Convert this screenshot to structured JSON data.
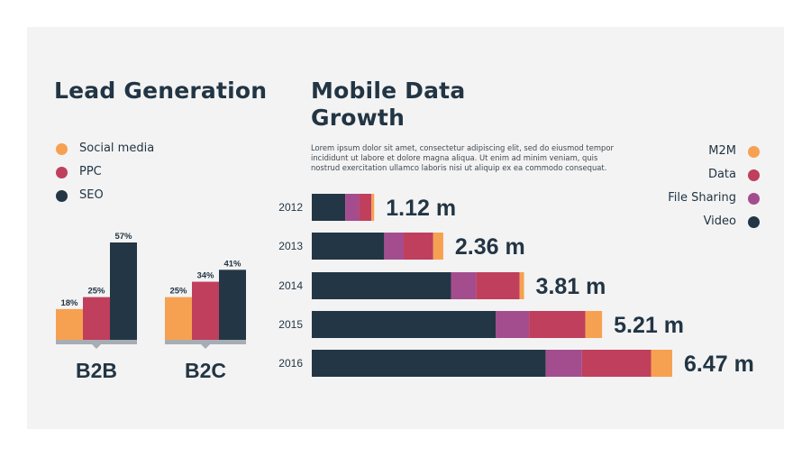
{
  "colors": {
    "social_media": "#f6a151",
    "ppc": "#bf3f5d",
    "seo": "#233645",
    "m2m": "#f6a151",
    "data": "#bf3f5d",
    "file_sharing": "#a44d8e",
    "video": "#233645",
    "base": "#a6adb4",
    "text": "#223544"
  },
  "lead_generation": {
    "title": "Lead Generation",
    "legend": [
      {
        "label": "Social media",
        "color": "#f6a151"
      },
      {
        "label": "PPC",
        "color": "#bf3f5d"
      },
      {
        "label": "SEO",
        "color": "#233645"
      }
    ]
  },
  "mobile_growth": {
    "title": "Mobile Data Growth",
    "description": "Lorem ipsum dolor sit amet, consectetur adipiscing elit, sed do eiusmod tempor incididunt ut labore et dolore magna aliqua. Ut enim ad minim veniam, quis nostrud exercitation ullamco laboris nisi ut aliquip ex ea commodo consequat.",
    "legend": [
      {
        "label": "M2M",
        "color": "#f6a151"
      },
      {
        "label": "Data",
        "color": "#bf3f5d"
      },
      {
        "label": "File Sharing",
        "color": "#a44d8e"
      },
      {
        "label": "Video",
        "color": "#233645"
      }
    ]
  },
  "chart_data": [
    {
      "type": "bar",
      "title": "Lead Generation",
      "groups": [
        {
          "name": "B2B",
          "values": [
            18,
            25,
            57
          ],
          "labels": [
            "18%",
            "25%",
            "57%"
          ]
        },
        {
          "name": "B2C",
          "values": [
            25,
            34,
            41
          ],
          "labels": [
            "25%",
            "34%",
            "41%"
          ]
        }
      ],
      "series": [
        "Social media",
        "PPC",
        "SEO"
      ],
      "unit": "%",
      "ylim": [
        0,
        57
      ]
    },
    {
      "type": "bar",
      "orientation": "horizontal",
      "stacked": true,
      "title": "Mobile Data Growth",
      "categories": [
        "2012",
        "2013",
        "2014",
        "2015",
        "2016"
      ],
      "totals": [
        1.12,
        2.36,
        3.81,
        5.21,
        6.47
      ],
      "total_labels": [
        "1.12 m",
        "2.36 m",
        "3.81 m",
        "5.21 m",
        "6.47 m"
      ],
      "series": [
        {
          "name": "Video",
          "values": [
            0.6,
            1.3,
            2.5,
            3.3,
            4.2
          ]
        },
        {
          "name": "File Sharing",
          "values": [
            0.25,
            0.35,
            0.45,
            0.6,
            0.65
          ]
        },
        {
          "name": "Data",
          "values": [
            0.22,
            0.53,
            0.78,
            1.01,
            1.24
          ]
        },
        {
          "name": "M2M",
          "values": [
            0.05,
            0.18,
            0.08,
            0.3,
            0.38
          ]
        }
      ],
      "legend_position": "right"
    }
  ]
}
